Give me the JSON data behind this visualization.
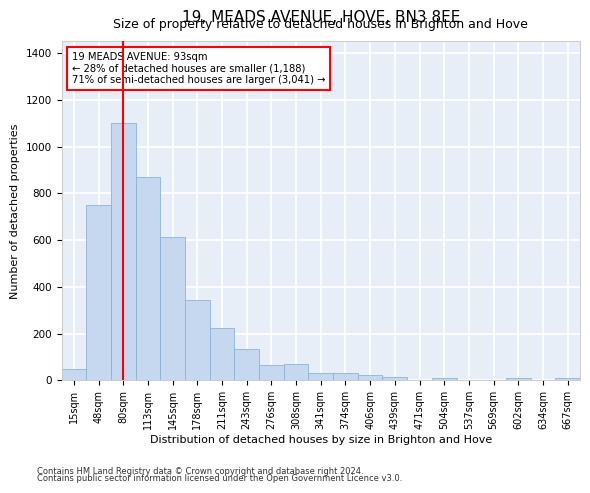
{
  "title": "19, MEADS AVENUE, HOVE, BN3 8EE",
  "subtitle": "Size of property relative to detached houses in Brighton and Hove",
  "xlabel": "Distribution of detached houses by size in Brighton and Hove",
  "ylabel": "Number of detached properties",
  "footnote1": "Contains HM Land Registry data © Crown copyright and database right 2024.",
  "footnote2": "Contains public sector information licensed under the Open Government Licence v3.0.",
  "annotation_line1": "19 MEADS AVENUE: 93sqm",
  "annotation_line2": "← 28% of detached houses are smaller (1,188)",
  "annotation_line3": "71% of semi-detached houses are larger (3,041) →",
  "bar_color": "#c5d8f0",
  "bar_edge_color": "#8ab4d8",
  "vline_color": "red",
  "vline_x": 2,
  "categories": [
    "15sqm",
    "48sqm",
    "80sqm",
    "113sqm",
    "145sqm",
    "178sqm",
    "211sqm",
    "243sqm",
    "276sqm",
    "308sqm",
    "341sqm",
    "374sqm",
    "406sqm",
    "439sqm",
    "471sqm",
    "504sqm",
    "537sqm",
    "569sqm",
    "602sqm",
    "634sqm",
    "667sqm"
  ],
  "values": [
    50,
    750,
    1100,
    870,
    615,
    345,
    225,
    135,
    65,
    70,
    30,
    30,
    22,
    15,
    0,
    12,
    0,
    0,
    12,
    0,
    12
  ],
  "ylim": [
    0,
    1450
  ],
  "yticks": [
    0,
    200,
    400,
    600,
    800,
    1000,
    1200,
    1400
  ],
  "bg_color": "#e8eef8",
  "grid_color": "white",
  "annotation_box_color": "white",
  "annotation_box_edge": "red",
  "title_fontsize": 11,
  "subtitle_fontsize": 9,
  "axis_label_fontsize": 8,
  "tick_fontsize": 7,
  "footnote_fontsize": 6
}
